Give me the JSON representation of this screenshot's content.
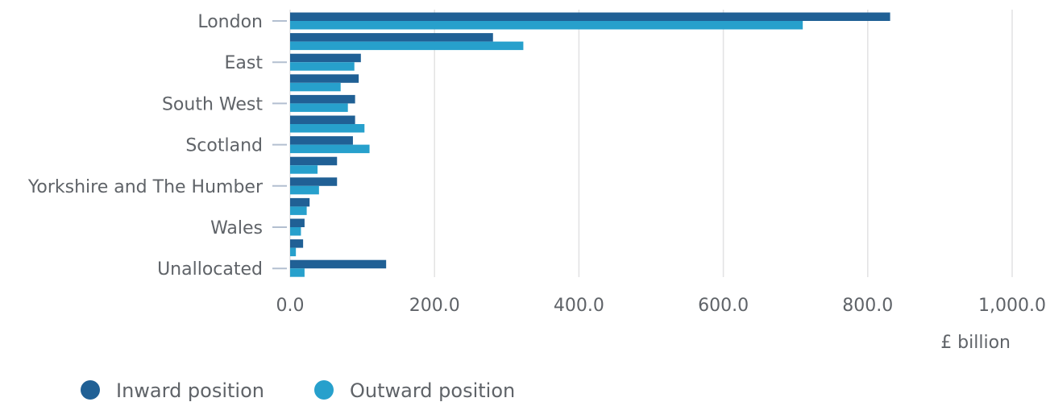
{
  "chart_data": {
    "type": "bar",
    "orientation": "horizontal",
    "categories": [
      "London",
      "",
      "East",
      "",
      "South West",
      "",
      "Scotland",
      "",
      "Yorkshire and The Humber",
      "",
      "Wales",
      "",
      "Unallocated"
    ],
    "series": [
      {
        "name": "Inward position",
        "color": "#206095",
        "values": [
          831,
          281,
          98,
          95,
          90,
          90,
          87,
          65,
          65,
          27,
          20,
          18,
          133
        ]
      },
      {
        "name": "Outward position",
        "color": "#27a0cc",
        "values": [
          710,
          323,
          89,
          70,
          80,
          103,
          110,
          38,
          40,
          23,
          15,
          8,
          20
        ]
      }
    ],
    "xlim": [
      0,
      1000
    ],
    "xticks": [
      0,
      200,
      400,
      600,
      800,
      1000
    ],
    "xtick_labels": [
      "0.0",
      "200.0",
      "400.0",
      "600.0",
      "800.0",
      "1,000.0"
    ],
    "xlabel": "£ billion",
    "grid": true,
    "legend_position": "bottom-left"
  }
}
